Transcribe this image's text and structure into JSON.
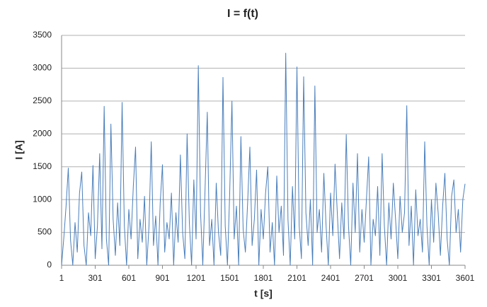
{
  "chart_data": {
    "type": "line",
    "title": "I = f(t)",
    "x_label": "t [s]",
    "y_label": "I [A]",
    "color": "#4a7ebb",
    "grid": true,
    "xlim": [
      1,
      3601
    ],
    "xticks": [
      1,
      301,
      601,
      901,
      1201,
      1501,
      1801,
      2101,
      2401,
      2701,
      3001,
      3301,
      3601
    ],
    "ylim": [
      0,
      3500
    ],
    "yticks": [
      0,
      500,
      1000,
      1500,
      2000,
      2500,
      3000,
      3500
    ],
    "x": [
      1,
      21,
      41,
      61,
      81,
      101,
      121,
      141,
      161,
      181,
      201,
      221,
      241,
      261,
      281,
      301,
      321,
      341,
      361,
      381,
      401,
      421,
      441,
      461,
      481,
      501,
      521,
      541,
      561,
      581,
      601,
      621,
      641,
      661,
      681,
      701,
      721,
      741,
      761,
      781,
      801,
      821,
      841,
      861,
      881,
      901,
      921,
      941,
      961,
      981,
      1001,
      1021,
      1041,
      1061,
      1081,
      1101,
      1121,
      1141,
      1161,
      1181,
      1201,
      1221,
      1241,
      1261,
      1281,
      1301,
      1321,
      1341,
      1361,
      1381,
      1401,
      1421,
      1441,
      1461,
      1481,
      1501,
      1521,
      1541,
      1561,
      1581,
      1601,
      1621,
      1641,
      1661,
      1681,
      1701,
      1721,
      1741,
      1761,
      1781,
      1801,
      1821,
      1841,
      1861,
      1881,
      1901,
      1921,
      1941,
      1961,
      1981,
      2001,
      2021,
      2041,
      2061,
      2081,
      2101,
      2121,
      2141,
      2161,
      2181,
      2201,
      2221,
      2241,
      2261,
      2281,
      2301,
      2321,
      2341,
      2361,
      2381,
      2401,
      2421,
      2441,
      2461,
      2481,
      2501,
      2521,
      2541,
      2561,
      2581,
      2601,
      2621,
      2641,
      2661,
      2681,
      2701,
      2721,
      2741,
      2761,
      2781,
      2801,
      2821,
      2841,
      2861,
      2881,
      2901,
      2921,
      2941,
      2961,
      2981,
      3001,
      3021,
      3041,
      3061,
      3081,
      3101,
      3121,
      3141,
      3161,
      3181,
      3201,
      3221,
      3241,
      3261,
      3281,
      3301,
      3321,
      3341,
      3361,
      3381,
      3401,
      3421,
      3441,
      3461,
      3481,
      3501,
      3521,
      3541,
      3561,
      3581,
      3601
    ],
    "values": [
      0,
      420,
      900,
      1480,
      380,
      0,
      650,
      200,
      1100,
      1420,
      300,
      0,
      800,
      450,
      1520,
      100,
      600,
      1700,
      250,
      2420,
      400,
      0,
      2150,
      700,
      150,
      950,
      300,
      2480,
      600,
      0,
      850,
      400,
      1200,
      1800,
      100,
      700,
      350,
      1050,
      0,
      600,
      1880,
      300,
      750,
      0,
      950,
      1530,
      200,
      650,
      400,
      1100,
      0,
      800,
      350,
      1680,
      500,
      100,
      2000,
      650,
      0,
      1300,
      400,
      3040,
      800,
      0,
      1150,
      2330,
      300,
      700,
      0,
      1250,
      500,
      150,
      2860,
      600,
      0,
      1100,
      2500,
      400,
      900,
      0,
      1960,
      550,
      200,
      950,
      1800,
      300,
      700,
      1450,
      0,
      850,
      400,
      1100,
      1500,
      200,
      650,
      0,
      1360,
      500,
      900,
      150,
      3230,
      700,
      0,
      1200,
      400,
      3020,
      600,
      100,
      2870,
      800,
      300,
      1000,
      0,
      2730,
      500,
      850,
      200,
      1400,
      600,
      0,
      1100,
      450,
      1540,
      800,
      100,
      950,
      400,
      1990,
      600,
      0,
      1250,
      500,
      1700,
      200,
      850,
      350,
      1000,
      1650,
      0,
      700,
      450,
      1200,
      150,
      1700,
      600,
      0,
      950,
      400,
      1250,
      700,
      100,
      1050,
      500,
      800,
      2430,
      300,
      900,
      0,
      1150,
      450,
      700,
      200,
      1880,
      600,
      0,
      1000,
      350,
      1250,
      800,
      150,
      900,
      1400,
      400,
      0,
      1050,
      1300,
      500,
      850,
      200,
      1000,
      1240
    ]
  }
}
